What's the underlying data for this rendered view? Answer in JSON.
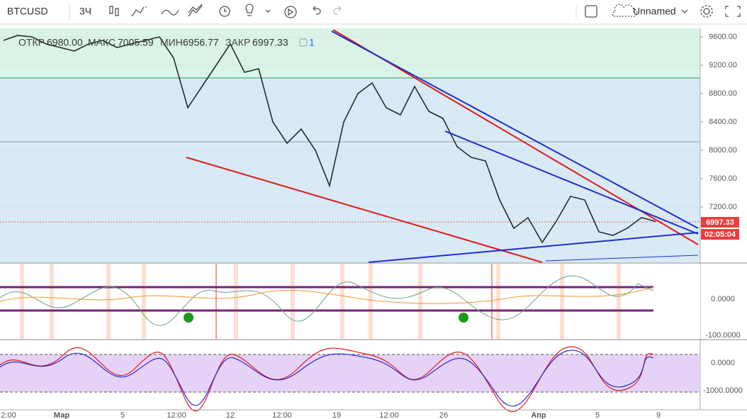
{
  "toolbar": {
    "symbol": "BTCUSD",
    "interval": "3Ч",
    "layout_name": "Unnamed"
  },
  "legend": {
    "items": [
      {
        "label": "ОТКР",
        "value": "6980.00"
      },
      {
        "label": "МАКС",
        "value": "7005.59"
      },
      {
        "label": "МИН",
        "value": "6956.77"
      },
      {
        "label": "ЗАКР",
        "value": "6997.33"
      }
    ],
    "alerts_count": "1"
  },
  "chart_data": {
    "type": "line",
    "color": "#2b2b2b",
    "values": [
      9550,
      9620,
      9600,
      9500,
      9450,
      9400,
      9500,
      9550,
      9450,
      9500,
      9550,
      9600,
      9300,
      8600,
      8900,
      9200,
      9500,
      9100,
      9150,
      8400,
      8100,
      8300,
      8000,
      7500,
      8400,
      8800,
      8950,
      8600,
      8500,
      8900,
      8550,
      8450,
      8050,
      7900,
      7850,
      7300,
      6900,
      7050,
      6700,
      7000,
      7350,
      7300,
      6850,
      6800,
      6900,
      7050,
      6997.33
    ],
    "ylim": [
      6420,
      9720
    ],
    "yticks": [
      {
        "value": 9600,
        "label": "9600.00"
      },
      {
        "value": 9200,
        "label": "9200.00"
      },
      {
        "value": 8800,
        "label": "8800.00"
      },
      {
        "value": 8400,
        "label": "8400.00"
      },
      {
        "value": 8000,
        "label": "8000.00"
      },
      {
        "value": 7600,
        "label": "7600.00"
      },
      {
        "value": 7200,
        "label": "7200.00"
      }
    ],
    "grid": true
  },
  "price_labels": {
    "last": "6997.33",
    "countdown": "02:05:04"
  },
  "oscillator1_ticks": [
    "0.0000",
    "-100.0000"
  ],
  "oscillator2_ticks": [
    "0.0000",
    "-1000.0000"
  ],
  "x_labels": [
    "2:00",
    "Мар",
    "5",
    "12:00",
    "12",
    "12:00",
    "19",
    "12:00",
    "26",
    "Апр",
    "5",
    "9"
  ]
}
